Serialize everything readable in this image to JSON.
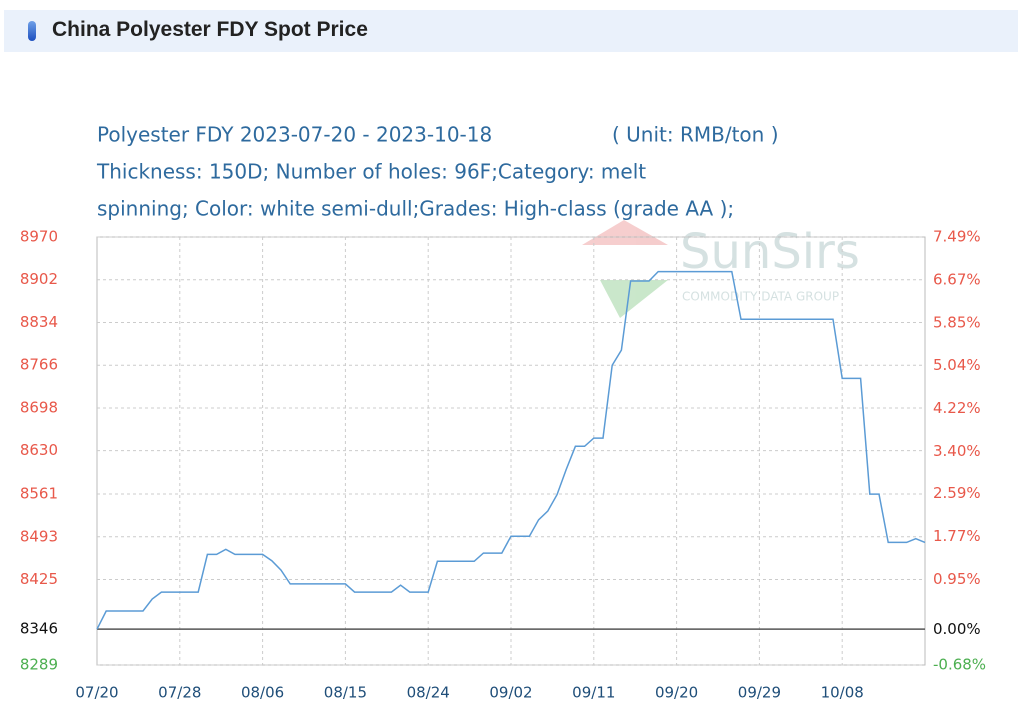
{
  "header": {
    "title": "China Polyester FDY Spot Price"
  },
  "chart_data": {
    "type": "line",
    "title": "Polyester FDY 2023-07-20 - 2023-10-18",
    "unit": "( Unit: RMB/ton )",
    "subtitle": [
      "Thickness: 150D; Number of holes: 96F;Category: melt",
      "spinning; Color: white semi-dull;Grades: High-class (grade AA );"
    ],
    "watermark": [
      "SunSirs",
      "COMMODITY DATA GROUP"
    ],
    "categories": [
      "07/20",
      null,
      null,
      null,
      null,
      null,
      null,
      null,
      null,
      "07/28",
      null,
      null,
      null,
      null,
      null,
      null,
      null,
      null,
      "08/06",
      null,
      null,
      null,
      null,
      null,
      null,
      null,
      null,
      "08/15",
      null,
      null,
      null,
      null,
      null,
      null,
      null,
      null,
      "08/24",
      null,
      null,
      null,
      null,
      null,
      null,
      null,
      null,
      "09/02",
      null,
      null,
      null,
      null,
      null,
      null,
      null,
      null,
      "09/11",
      null,
      null,
      null,
      null,
      null,
      null,
      null,
      null,
      "09/20",
      null,
      null,
      null,
      null,
      null,
      null,
      null,
      null,
      "09/29",
      null,
      null,
      null,
      null,
      null,
      null,
      null,
      null,
      "10/08",
      null,
      null,
      null,
      null,
      null,
      null,
      null,
      null,
      null
    ],
    "values": [
      8346,
      8375,
      8375,
      8375,
      8375,
      8375,
      8394,
      8405,
      8405,
      8405,
      8405,
      8405,
      8465,
      8465,
      8473,
      8465,
      8465,
      8465,
      8465,
      8455,
      8440,
      8418,
      8418,
      8418,
      8418,
      8418,
      8418,
      8418,
      8405,
      8405,
      8405,
      8405,
      8405,
      8416,
      8405,
      8405,
      8405,
      8454,
      8454,
      8454,
      8454,
      8454,
      8467,
      8467,
      8467,
      8494,
      8494,
      8494,
      8520,
      8534,
      8560,
      8600,
      8637,
      8637,
      8650,
      8650,
      8766,
      8790,
      8900,
      8900,
      8900,
      8915,
      8915,
      8915,
      8915,
      8915,
      8915,
      8915,
      8915,
      8915,
      8839,
      8839,
      8839,
      8839,
      8839,
      8839,
      8839,
      8839,
      8839,
      8839,
      8839,
      8745,
      8745,
      8745,
      8561,
      8561,
      8484,
      8484,
      8484,
      8490,
      8484
    ],
    "color": "#5b9bd5",
    "ylim": [
      8289,
      8970
    ],
    "yticks": [
      8970,
      8902,
      8834,
      8766,
      8698,
      8630,
      8561,
      8493,
      8425,
      8346,
      8289
    ],
    "y2lim": [
      -0.68,
      7.49
    ],
    "y2ticks": [
      {
        "value": 7.49,
        "label": "7.49%"
      },
      {
        "value": 6.67,
        "label": "6.67%"
      },
      {
        "value": 5.85,
        "label": "5.85%"
      },
      {
        "value": 5.04,
        "label": "5.04%"
      },
      {
        "value": 4.22,
        "label": "4.22%"
      },
      {
        "value": 3.4,
        "label": "3.40%"
      },
      {
        "value": 2.59,
        "label": "2.59%"
      },
      {
        "value": 1.77,
        "label": "1.77%"
      },
      {
        "value": 0.95,
        "label": "0.95%"
      },
      {
        "value": 0,
        "label": "0.00%"
      },
      {
        "value": -0.68,
        "label": "-0.68%"
      }
    ],
    "up_color": "#e8584a",
    "down_color": "#4caf50",
    "base_color": "#111111",
    "grid": true
  }
}
